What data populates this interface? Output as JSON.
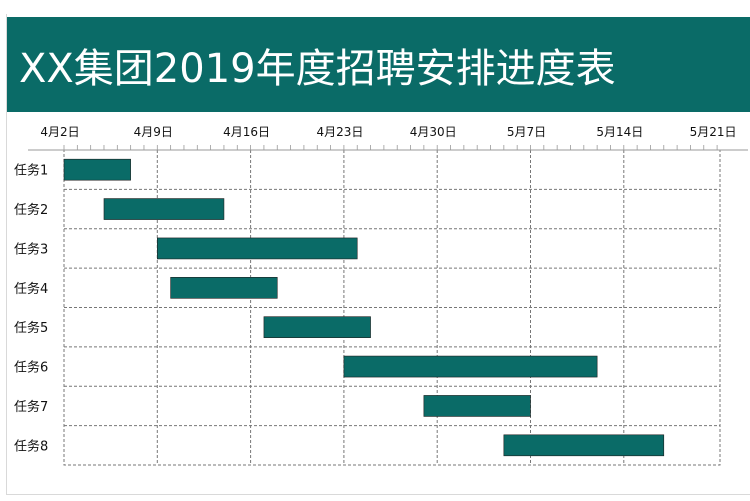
{
  "title": "XX集团2019年度招聘安排进度表",
  "colors": {
    "header_bg": "#0a6b67",
    "bar": "#0a6b67",
    "grid": "#777777",
    "text": "#111111"
  },
  "chart_data": {
    "type": "bar",
    "orientation": "horizontal-gantt",
    "title": "XX集团2019年度招聘安排进度表",
    "x_axis": {
      "tick_labels": [
        "4月2日",
        "4月9日",
        "4月16日",
        "4月23日",
        "4月30日",
        "5月7日",
        "5月14日",
        "5月21日"
      ],
      "range_days": [
        0,
        49
      ],
      "position": "top",
      "gridlines": "dashed"
    },
    "categories": [
      "任务1",
      "任务2",
      "任务3",
      "任务4",
      "任务5",
      "任务6",
      "任务7",
      "任务8"
    ],
    "start_dates": [
      "4月2日",
      "4月5日",
      "4月9日",
      "4月10日",
      "4月17日",
      "4月23日",
      "4月29日",
      "5月5日"
    ],
    "durations_days": [
      5,
      9,
      15,
      8,
      8,
      19,
      8,
      12
    ],
    "grid": true,
    "legend": "none"
  }
}
